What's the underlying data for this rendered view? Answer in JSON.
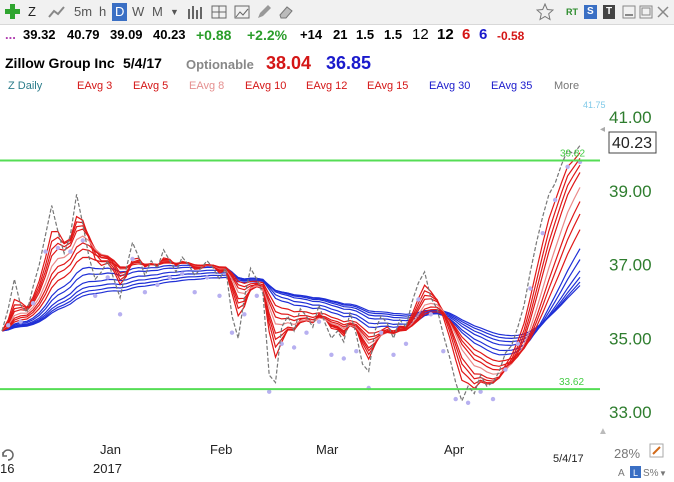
{
  "toolbar": {
    "add_icon": "plus-icon",
    "symbol": "Z",
    "timeframes": [
      "5m",
      "h",
      "D",
      "W",
      "M"
    ],
    "active_timeframe": "D",
    "right_labels": {
      "rt": "RT",
      "s": "S",
      "t": "T"
    }
  },
  "quote": {
    "open": "39.32",
    "high": "40.79",
    "low": "39.09",
    "close": "40.23",
    "change": "+0.88",
    "change_pct": "+2.2%",
    "stat1": "+14",
    "stat2": "21",
    "stat3": "1.5",
    "stat4": "1.5",
    "stat5": "12",
    "stat6": "12",
    "stat7": "6",
    "stat8": "6",
    "stat9": "-0.58"
  },
  "company": {
    "name": "Zillow Group Inc",
    "date": "5/4/17",
    "optionable": "Optionable",
    "value_red": "38.04",
    "value_blue": "36.85"
  },
  "indicators": {
    "items": [
      "Z Daily",
      "EAvg 3",
      "EAvg 5",
      "EAvg 8",
      "EAvg 10",
      "EAvg 12",
      "EAvg 15",
      "EAvg 30",
      "EAvg 35",
      "More"
    ]
  },
  "chart_data": {
    "type": "line",
    "symbol": "Z",
    "x_labels": [
      "Jan",
      "Feb",
      "Mar",
      "Apr"
    ],
    "year_label": "2017",
    "left_partial_label": "16",
    "y_ticks": [
      "41.00",
      "39.00",
      "37.00",
      "35.00",
      "33.00"
    ],
    "ylim": [
      32.5,
      42.0
    ],
    "last_price": "40.23",
    "top_label": "41.75",
    "resistance_label": "39.82",
    "support_label": "33.62",
    "resistance": 39.82,
    "support": 33.62,
    "date_label": "5/4/17",
    "zoom_label": "28%",
    "bottom_right_label": "S%",
    "price": [
      35.2,
      35.8,
      36.6,
      35.9,
      35.7,
      36.4,
      37.0,
      37.8,
      38.6,
      37.9,
      37.3,
      37.8,
      38.9,
      38.1,
      37.2,
      36.6,
      36.8,
      37.1,
      36.6,
      36.1,
      36.9,
      37.6,
      37.2,
      36.7,
      37.1,
      36.9,
      37.4,
      37.1,
      36.8,
      37.2,
      37.0,
      36.7,
      36.9,
      37.1,
      36.9,
      36.6,
      36.9,
      35.6,
      35.0,
      36.1,
      36.9,
      36.6,
      36.2,
      34.0,
      33.8,
      35.3,
      35.6,
      35.2,
      35.8,
      35.6,
      35.3,
      35.9,
      35.4,
      35.0,
      35.2,
      34.9,
      35.7,
      35.1,
      34.3,
      34.1,
      35.2,
      35.6,
      35.4,
      35.0,
      35.5,
      35.3,
      36.0,
      36.5,
      36.8,
      36.1,
      35.8,
      35.1,
      34.5,
      33.8,
      33.3,
      33.7,
      33.5,
      34.0,
      33.7,
      33.8,
      34.1,
      34.6,
      34.8,
      35.3,
      35.9,
      36.8,
      37.6,
      38.3,
      38.9,
      39.2,
      39.7,
      40.1,
      40.0,
      40.23
    ]
  }
}
